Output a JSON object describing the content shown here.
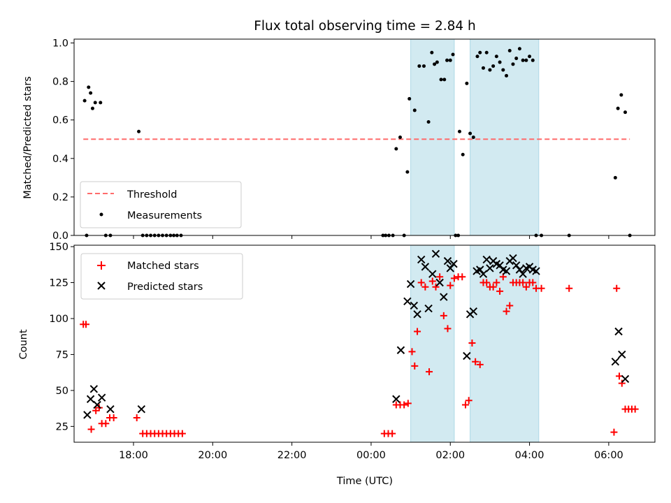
{
  "figure": {
    "title": "Flux total observing time = 2.84 h",
    "xlabel": "Time (UTC)"
  },
  "colors": {
    "shade": "#add8e6",
    "threshold": "#ff6b6b",
    "matched": "#ff0000",
    "predicted": "#000000",
    "measurement": "#000000"
  },
  "chart_data": [
    {
      "type": "scatter",
      "ylabel": "Matched/Predicted stars",
      "xlim": [
        "16:30",
        "07:10"
      ],
      "ylim": [
        0,
        1.02
      ],
      "yticks": [
        0.0,
        0.2,
        0.4,
        0.6,
        0.8,
        1.0
      ],
      "ytick_labels": [
        "0.0",
        "0.2",
        "0.4",
        "0.6",
        "0.8",
        "1.0"
      ],
      "xticks": [
        "18:00",
        "20:00",
        "22:00",
        "00:00",
        "02:00",
        "04:00",
        "06:00"
      ],
      "shaded_intervals": [
        [
          "01:00",
          "02:06"
        ],
        [
          "02:30",
          "04:14"
        ]
      ],
      "legend": {
        "position": "lower left",
        "entries": [
          "Threshold",
          "Measurements"
        ]
      },
      "series": [
        {
          "name": "Threshold",
          "kind": "line",
          "x": [
            "16:44",
            "06:32"
          ],
          "y": [
            0.5,
            0.5
          ]
        },
        {
          "name": "Measurements",
          "kind": "points",
          "x": [
            "16:46",
            "16:52",
            "16:55",
            "16:58",
            "17:02",
            "17:10",
            "18:08",
            "16:49",
            "17:18",
            "17:25",
            "18:14",
            "18:20",
            "18:26",
            "18:32",
            "18:38",
            "18:44",
            "18:50",
            "18:56",
            "19:01",
            "19:06",
            "19:12",
            "00:18",
            "00:22",
            "00:27",
            "00:33",
            "00:38",
            "00:44",
            "00:50",
            "00:55",
            "00:58",
            "01:06",
            "01:13",
            "01:20",
            "01:27",
            "01:32",
            "01:36",
            "01:40",
            "01:46",
            "01:51",
            "01:55",
            "02:00",
            "02:04",
            "02:08",
            "02:12",
            "02:14",
            "02:19",
            "02:25",
            "02:30",
            "02:35",
            "02:41",
            "02:45",
            "02:50",
            "02:55",
            "03:00",
            "03:05",
            "03:10",
            "03:15",
            "03:20",
            "03:25",
            "03:30",
            "03:35",
            "03:40",
            "03:45",
            "03:50",
            "03:55",
            "04:00",
            "04:05",
            "04:10",
            "04:18",
            "05:00",
            "06:10",
            "06:14",
            "06:19",
            "06:25",
            "06:32"
          ],
          "y": [
            0.7,
            0.77,
            0.74,
            0.66,
            0.69,
            0.69,
            0.54,
            0.0,
            0.0,
            0.0,
            0.0,
            0.0,
            0.0,
            0.0,
            0.0,
            0.0,
            0.0,
            0.0,
            0.0,
            0.0,
            0.0,
            0.0,
            0.0,
            0.0,
            0.0,
            0.45,
            0.51,
            0.0,
            0.33,
            0.71,
            0.65,
            0.88,
            0.88,
            0.59,
            0.95,
            0.89,
            0.9,
            0.81,
            0.81,
            0.91,
            0.91,
            0.94,
            0.0,
            0.0,
            0.54,
            0.42,
            0.79,
            0.53,
            0.51,
            0.93,
            0.95,
            0.87,
            0.95,
            0.86,
            0.88,
            0.93,
            0.9,
            0.86,
            0.83,
            0.96,
            0.89,
            0.92,
            0.97,
            0.91,
            0.91,
            0.93,
            0.91,
            0.0,
            0.0,
            0.0,
            0.3,
            0.66,
            0.73,
            0.64,
            0.0
          ]
        }
      ]
    },
    {
      "type": "scatter",
      "ylabel": "Count",
      "xlim": [
        "16:30",
        "07:10"
      ],
      "ylim": [
        14,
        151
      ],
      "yticks": [
        25,
        50,
        75,
        100,
        125,
        150
      ],
      "ytick_labels": [
        "25",
        "50",
        "75",
        "100",
        "125",
        "150"
      ],
      "xticks": [
        "18:00",
        "20:00",
        "22:00",
        "00:00",
        "02:00",
        "04:00",
        "06:00"
      ],
      "xtick_labels": [
        "18:00",
        "20:00",
        "22:00",
        "00:00",
        "02:00",
        "04:00",
        "06:00"
      ],
      "shaded_intervals": [
        [
          "01:00",
          "02:06"
        ],
        [
          "02:30",
          "04:14"
        ]
      ],
      "legend": {
        "position": "upper left",
        "entries": [
          "Matched stars",
          "Predicted stars"
        ]
      },
      "series": [
        {
          "name": "Matched stars",
          "marker": "+",
          "x": [
            "16:44",
            "16:48",
            "16:56",
            "17:03",
            "17:08",
            "17:12",
            "17:18",
            "17:24",
            "17:30",
            "18:05",
            "18:14",
            "18:20",
            "18:26",
            "18:32",
            "18:38",
            "18:44",
            "18:50",
            "18:56",
            "19:02",
            "19:08",
            "19:14",
            "00:20",
            "00:26",
            "00:32",
            "00:38",
            "00:44",
            "00:50",
            "00:56",
            "01:02",
            "01:06",
            "01:10",
            "01:16",
            "01:22",
            "01:28",
            "01:33",
            "01:38",
            "01:44",
            "01:50",
            "01:56",
            "02:00",
            "02:06",
            "02:12",
            "02:18",
            "02:23",
            "02:28",
            "02:33",
            "02:38",
            "02:45",
            "02:50",
            "02:55",
            "03:00",
            "03:05",
            "03:10",
            "03:15",
            "03:20",
            "03:25",
            "03:30",
            "03:35",
            "03:40",
            "03:45",
            "03:50",
            "03:55",
            "04:00",
            "04:05",
            "04:10",
            "04:18",
            "05:00",
            "06:08",
            "06:12",
            "06:16",
            "06:20",
            "06:25",
            "06:30",
            "06:35",
            "06:40"
          ],
          "y": [
            96,
            96,
            23,
            36,
            38,
            27,
            27,
            31,
            31,
            31,
            20,
            20,
            20,
            20,
            20,
            20,
            20,
            20,
            20,
            20,
            20,
            20,
            20,
            20,
            40,
            40,
            40,
            41,
            77,
            67,
            91,
            125,
            122,
            63,
            126,
            122,
            129,
            102,
            93,
            123,
            128,
            129,
            129,
            40,
            43,
            83,
            70,
            68,
            125,
            125,
            122,
            122,
            125,
            119,
            129,
            105,
            109,
            125,
            125,
            125,
            125,
            122,
            125,
            125,
            121,
            121,
            121,
            21,
            121,
            60,
            55,
            37,
            37,
            37,
            37
          ]
        },
        {
          "name": "Predicted stars",
          "marker": "x",
          "x": [
            "16:50",
            "16:55",
            "17:00",
            "17:05",
            "17:12",
            "17:25",
            "18:12",
            "00:38",
            "00:45",
            "00:55",
            "01:00",
            "01:05",
            "01:10",
            "01:16",
            "01:22",
            "01:27",
            "01:33",
            "01:38",
            "01:44",
            "01:50",
            "01:56",
            "02:00",
            "02:05",
            "02:25",
            "02:30",
            "02:35",
            "02:40",
            "02:45",
            "02:50",
            "02:55",
            "03:00",
            "03:05",
            "03:10",
            "03:15",
            "03:20",
            "03:25",
            "03:30",
            "03:35",
            "03:40",
            "03:45",
            "03:50",
            "03:55",
            "04:00",
            "04:05",
            "04:10",
            "06:10",
            "06:15",
            "06:20",
            "06:25"
          ],
          "y": [
            33,
            44,
            51,
            40,
            45,
            37,
            37,
            44,
            78,
            112,
            124,
            109,
            103,
            141,
            136,
            107,
            131,
            145,
            125,
            115,
            140,
            135,
            138,
            74,
            103,
            105,
            133,
            134,
            131,
            141,
            135,
            140,
            138,
            137,
            134,
            133,
            140,
            142,
            137,
            134,
            131,
            135,
            136,
            134,
            133,
            70,
            91,
            75,
            58
          ]
        }
      ]
    }
  ]
}
